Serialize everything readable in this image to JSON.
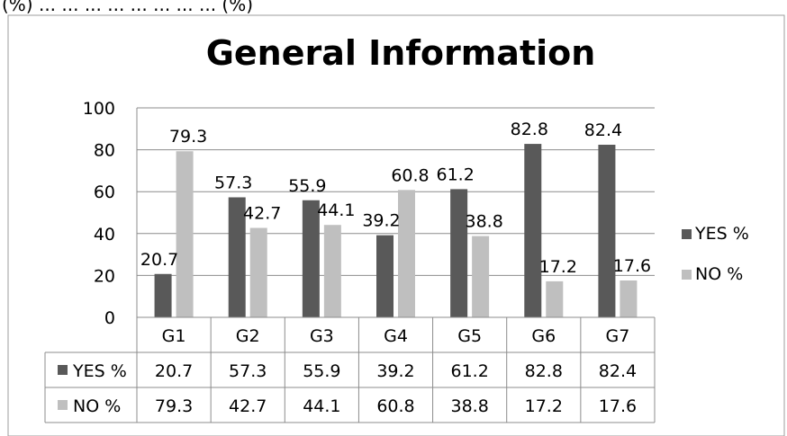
{
  "chart_data": {
    "type": "bar",
    "title": "General Information",
    "categories": [
      "G1",
      "G2",
      "G3",
      "G4",
      "G5",
      "G6",
      "G7"
    ],
    "series": [
      {
        "name": "YES %",
        "values": [
          20.7,
          57.3,
          55.9,
          39.2,
          61.2,
          82.8,
          82.4
        ],
        "color": "#595959"
      },
      {
        "name": "NO %",
        "values": [
          79.3,
          42.7,
          44.1,
          60.8,
          38.8,
          17.2,
          17.6
        ],
        "color": "#bfbfbf"
      }
    ],
    "ylim": [
      0,
      100
    ],
    "yticks": [
      0,
      20,
      40,
      60,
      80,
      100
    ],
    "grid": true,
    "legend": "right",
    "data_table": true
  },
  "header_text": "(%) ... ... ... ...                           ... ... ... ... (%)"
}
